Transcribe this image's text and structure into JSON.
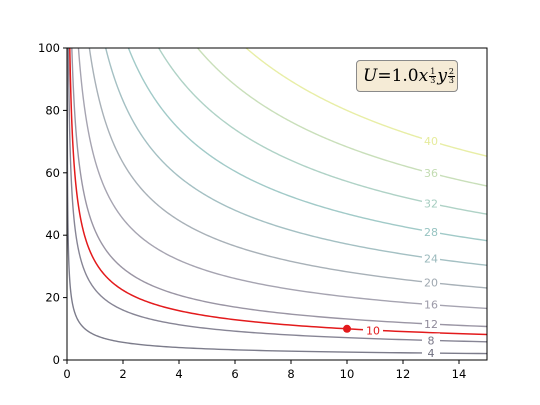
{
  "chart_data": {
    "type": "line",
    "subtype": "contour",
    "title": "",
    "xlabel": "",
    "ylabel": "",
    "xlim": [
      0,
      15
    ],
    "ylim": [
      0,
      100
    ],
    "x_ticks": [
      "0",
      "2",
      "4",
      "6",
      "8",
      "10",
      "12",
      "14"
    ],
    "y_ticks": [
      "0",
      "20",
      "40",
      "60",
      "80",
      "100"
    ],
    "annotation": {
      "lhs": "U",
      "equals": "=",
      "coef": "1.0",
      "x_var": "x",
      "x_exp_num": "1",
      "x_exp_den": "3",
      "y_var": "y",
      "y_exp_num": "2",
      "y_exp_den": "3"
    },
    "utility_function": {
      "A": 1.0,
      "alpha": 0.3333,
      "beta": 0.6667
    },
    "contour_levels": [
      "4",
      "8",
      "10",
      "12",
      "16",
      "20",
      "24",
      "28",
      "32",
      "36",
      "40"
    ],
    "series": [
      {
        "level": 4,
        "color": "#6e6e7e"
      },
      {
        "level": 8,
        "color": "#7a7889"
      },
      {
        "level": 10,
        "color": "#e31a1c"
      },
      {
        "level": 12,
        "color": "#8f8a9a"
      },
      {
        "level": 16,
        "color": "#9c9aa8"
      },
      {
        "level": 20,
        "color": "#9fa8b0"
      },
      {
        "level": 24,
        "color": "#9ab9bc"
      },
      {
        "level": 28,
        "color": "#97c4c2"
      },
      {
        "level": 32,
        "color": "#a6cdc0"
      },
      {
        "level": 36,
        "color": "#c3dcb2"
      },
      {
        "level": 40,
        "color": "#e6ec9c"
      }
    ],
    "highlight_point": {
      "x": 10,
      "y": 10,
      "color": "#e31a1c"
    },
    "highlight_label": "10"
  }
}
